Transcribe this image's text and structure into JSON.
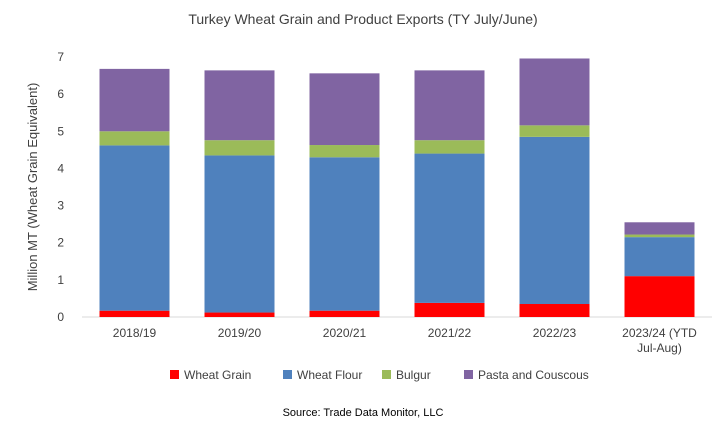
{
  "chart_data": {
    "type": "bar",
    "stacked": true,
    "title": "Turkey Wheat Grain and Product Exports (TY July/June)",
    "ylabel": "Million MT (Wheat Grain Equivalent)",
    "xlabel": "",
    "ylim": [
      0,
      7
    ],
    "yticks": [
      0,
      1,
      2,
      3,
      4,
      5,
      6,
      7
    ],
    "grid": false,
    "legend_position": "bottom",
    "categories": [
      "2018/19",
      "2019/20",
      "2020/21",
      "2021/22",
      "2022/23",
      "2023/24 (YTD Jul-Aug)"
    ],
    "series": [
      {
        "name": "Wheat Grain",
        "color": "#ff0000",
        "values": [
          0.17,
          0.12,
          0.17,
          0.38,
          0.35,
          1.1
        ]
      },
      {
        "name": "Wheat Flour",
        "color": "#4f81bd",
        "values": [
          4.45,
          4.23,
          4.13,
          4.02,
          4.5,
          1.05
        ]
      },
      {
        "name": "Bulgur",
        "color": "#9bbb59",
        "values": [
          0.38,
          0.41,
          0.33,
          0.36,
          0.31,
          0.07
        ]
      },
      {
        "name": "Pasta and Couscous",
        "color": "#8064a2",
        "values": [
          1.68,
          1.88,
          1.93,
          1.88,
          1.8,
          0.33
        ]
      }
    ],
    "source": "Source: Trade Data Monitor, LLC"
  }
}
